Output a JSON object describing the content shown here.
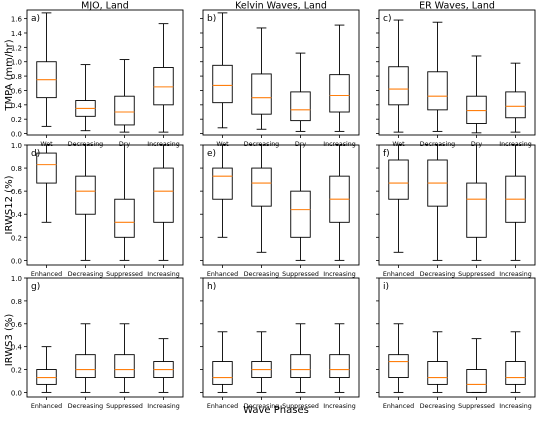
{
  "figure": {
    "ylabels": [
      "TMPA (mm/hr)",
      "IRWS12 (%)",
      "IRWS3 (%)"
    ],
    "xlabel": "Wave Phases",
    "column_titles": [
      "MJO, Land",
      "Kelvin Waves, Land",
      "ER Waves, Land"
    ],
    "colors": {
      "box": "#000000",
      "median": "#ff7f0e",
      "background": "#ffffff"
    }
  },
  "chart_data": [
    {
      "type": "boxplot",
      "panel_label": "a)",
      "title": "MJO, Land",
      "ylabel": "TMPA (mm/hr)",
      "categories": [
        "Wet",
        "Decreasing",
        "Dry",
        "Increasing"
      ],
      "yticks": [
        "0.0",
        "0.2",
        "0.4",
        "0.6",
        "0.8",
        "1.0",
        "1.2",
        "1.4",
        "1.6"
      ],
      "ylim": [
        -0.02,
        1.72
      ],
      "boxes": [
        {
          "whislo": 0.1,
          "q1": 0.5,
          "med": 0.75,
          "q3": 1.0,
          "whishi": 1.68
        },
        {
          "whislo": 0.04,
          "q1": 0.24,
          "med": 0.35,
          "q3": 0.46,
          "whishi": 0.96
        },
        {
          "whislo": 0.02,
          "q1": 0.12,
          "med": 0.3,
          "q3": 0.52,
          "whishi": 1.03
        },
        {
          "whislo": 0.02,
          "q1": 0.4,
          "med": 0.65,
          "q3": 0.92,
          "whishi": 1.53
        }
      ]
    },
    {
      "type": "boxplot",
      "panel_label": "b)",
      "title": "Kelvin Waves, Land",
      "ylabel": "",
      "categories": [
        "Wet",
        "Decreasing",
        "Dry",
        "Increasing"
      ],
      "yticks": [
        "0.0",
        "0.2",
        "0.4",
        "0.6",
        "0.8",
        "1.0",
        "1.2",
        "1.4",
        "1.6"
      ],
      "ylim": [
        -0.02,
        1.72
      ],
      "boxes": [
        {
          "whislo": 0.08,
          "q1": 0.43,
          "med": 0.67,
          "q3": 0.95,
          "whishi": 1.68
        },
        {
          "whislo": 0.06,
          "q1": 0.27,
          "med": 0.5,
          "q3": 0.83,
          "whishi": 1.47
        },
        {
          "whislo": 0.03,
          "q1": 0.18,
          "med": 0.33,
          "q3": 0.58,
          "whishi": 1.12
        },
        {
          "whislo": 0.03,
          "q1": 0.3,
          "med": 0.53,
          "q3": 0.82,
          "whishi": 1.51
        }
      ]
    },
    {
      "type": "boxplot",
      "panel_label": "c)",
      "title": "ER Waves, Land",
      "ylabel": "",
      "categories": [
        "Wet",
        "Decreasing",
        "Dry",
        "Increasing"
      ],
      "yticks": [
        "0.0",
        "0.2",
        "0.4",
        "0.6",
        "0.8",
        "1.0",
        "1.2",
        "1.4",
        "1.6"
      ],
      "ylim": [
        -0.02,
        1.72
      ],
      "boxes": [
        {
          "whislo": 0.02,
          "q1": 0.4,
          "med": 0.62,
          "q3": 0.93,
          "whishi": 1.58
        },
        {
          "whislo": 0.03,
          "q1": 0.33,
          "med": 0.52,
          "q3": 0.86,
          "whishi": 1.55
        },
        {
          "whislo": 0.01,
          "q1": 0.14,
          "med": 0.32,
          "q3": 0.52,
          "whishi": 1.08
        },
        {
          "whislo": 0.02,
          "q1": 0.22,
          "med": 0.38,
          "q3": 0.58,
          "whishi": 0.98
        }
      ]
    },
    {
      "type": "boxplot",
      "panel_label": "d)",
      "title": "",
      "ylabel": "IRWS12 (%)",
      "categories": [
        "Enhanced",
        "Decreasing",
        "Suppressed",
        "Increasing"
      ],
      "yticks": [
        "0.0",
        "0.2",
        "0.4",
        "0.6",
        "0.8",
        "1.0"
      ],
      "ylim": [
        -0.04,
        1.0
      ],
      "boxes": [
        {
          "whislo": 0.33,
          "q1": 0.67,
          "med": 0.83,
          "q3": 0.93,
          "whishi": 1.0
        },
        {
          "whislo": 0.0,
          "q1": 0.4,
          "med": 0.6,
          "q3": 0.73,
          "whishi": 1.0
        },
        {
          "whislo": 0.0,
          "q1": 0.2,
          "med": 0.33,
          "q3": 0.53,
          "whishi": 1.0
        },
        {
          "whislo": 0.0,
          "q1": 0.33,
          "med": 0.6,
          "q3": 0.8,
          "whishi": 1.0
        }
      ]
    },
    {
      "type": "boxplot",
      "panel_label": "e)",
      "title": "",
      "ylabel": "",
      "categories": [
        "Enhanced",
        "Decreasing",
        "Suppressed",
        "Increasing"
      ],
      "yticks": [
        "0.0",
        "0.2",
        "0.4",
        "0.6",
        "0.8",
        "1.0"
      ],
      "ylim": [
        -0.04,
        1.0
      ],
      "boxes": [
        {
          "whislo": 0.2,
          "q1": 0.53,
          "med": 0.73,
          "q3": 0.8,
          "whishi": 1.0
        },
        {
          "whislo": 0.07,
          "q1": 0.47,
          "med": 0.67,
          "q3": 0.8,
          "whishi": 1.0
        },
        {
          "whislo": 0.0,
          "q1": 0.2,
          "med": 0.44,
          "q3": 0.6,
          "whishi": 1.0
        },
        {
          "whislo": 0.0,
          "q1": 0.33,
          "med": 0.53,
          "q3": 0.73,
          "whishi": 1.0
        }
      ]
    },
    {
      "type": "boxplot",
      "panel_label": "f)",
      "title": "",
      "ylabel": "",
      "categories": [
        "Enhanced",
        "Decreasing",
        "Suppressed",
        "Increasing"
      ],
      "yticks": [
        "0.0",
        "0.2",
        "0.4",
        "0.6",
        "0.8",
        "1.0"
      ],
      "ylim": [
        -0.04,
        1.0
      ],
      "boxes": [
        {
          "whislo": 0.07,
          "q1": 0.53,
          "med": 0.67,
          "q3": 0.87,
          "whishi": 1.0
        },
        {
          "whislo": 0.0,
          "q1": 0.47,
          "med": 0.67,
          "q3": 0.87,
          "whishi": 1.0
        },
        {
          "whislo": 0.0,
          "q1": 0.2,
          "med": 0.53,
          "q3": 0.67,
          "whishi": 1.0
        },
        {
          "whislo": 0.0,
          "q1": 0.33,
          "med": 0.53,
          "q3": 0.73,
          "whishi": 1.0
        }
      ]
    },
    {
      "type": "boxplot",
      "panel_label": "g)",
      "title": "",
      "ylabel": "IRWS3 (%)",
      "categories": [
        "Enhanced",
        "Decreasing",
        "Suppressed",
        "Increasing"
      ],
      "yticks": [
        "0.0",
        "0.2",
        "0.4",
        "0.6",
        "0.8",
        "1.0"
      ],
      "ylim": [
        -0.04,
        1.0
      ],
      "boxes": [
        {
          "whislo": 0.0,
          "q1": 0.07,
          "med": 0.13,
          "q3": 0.2,
          "whishi": 0.4
        },
        {
          "whislo": 0.0,
          "q1": 0.13,
          "med": 0.2,
          "q3": 0.33,
          "whishi": 0.6
        },
        {
          "whislo": 0.0,
          "q1": 0.13,
          "med": 0.2,
          "q3": 0.33,
          "whishi": 0.6
        },
        {
          "whislo": 0.0,
          "q1": 0.13,
          "med": 0.2,
          "q3": 0.27,
          "whishi": 0.47
        }
      ]
    },
    {
      "type": "boxplot",
      "panel_label": "h)",
      "title": "",
      "ylabel": "",
      "categories": [
        "Enhanced",
        "Decreasing",
        "Suppressed",
        "Increasing"
      ],
      "yticks": [
        "0.0",
        "0.2",
        "0.4",
        "0.6",
        "0.8",
        "1.0"
      ],
      "ylim": [
        -0.04,
        1.0
      ],
      "boxes": [
        {
          "whislo": 0.0,
          "q1": 0.07,
          "med": 0.13,
          "q3": 0.27,
          "whishi": 0.53
        },
        {
          "whislo": 0.0,
          "q1": 0.13,
          "med": 0.2,
          "q3": 0.27,
          "whishi": 0.53
        },
        {
          "whislo": 0.0,
          "q1": 0.13,
          "med": 0.2,
          "q3": 0.33,
          "whishi": 0.6
        },
        {
          "whislo": 0.0,
          "q1": 0.13,
          "med": 0.2,
          "q3": 0.33,
          "whishi": 0.6
        }
      ]
    },
    {
      "type": "boxplot",
      "panel_label": "i)",
      "title": "",
      "ylabel": "",
      "categories": [
        "Enhanced",
        "Decreasing",
        "Suppressed",
        "Increasing"
      ],
      "yticks": [
        "0.0",
        "0.2",
        "0.4",
        "0.6",
        "0.8",
        "1.0"
      ],
      "ylim": [
        -0.04,
        1.0
      ],
      "boxes": [
        {
          "whislo": 0.0,
          "q1": 0.13,
          "med": 0.27,
          "q3": 0.33,
          "whishi": 0.6
        },
        {
          "whislo": 0.0,
          "q1": 0.07,
          "med": 0.13,
          "q3": 0.27,
          "whishi": 0.53
        },
        {
          "whislo": 0.0,
          "q1": 0.0,
          "med": 0.07,
          "q3": 0.2,
          "whishi": 0.47
        },
        {
          "whislo": 0.0,
          "q1": 0.07,
          "med": 0.13,
          "q3": 0.27,
          "whishi": 0.53
        }
      ]
    }
  ]
}
